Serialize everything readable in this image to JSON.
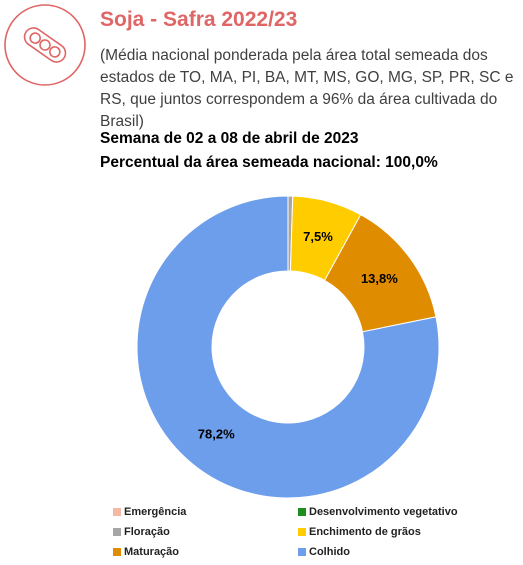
{
  "chart_data": {
    "type": "donut",
    "title": "Soja - Safra 2022/23",
    "subtitle": "(Média nacional ponderada pela área total semeada dos estados de TO, MA, PI, BA, MT, MS, GO, MG, SP, PR, SC e RS, que juntos correspondem a 96% da área cultivada do Brasil)",
    "week": "Semana de 02 a 08 de abril de 2023",
    "area_note": "Percentual da área semeada nacional: 100,0%",
    "categories": [
      "Emergência",
      "Desenvolvimento vegetativo",
      "Floração",
      "Enchimento de grãos",
      "Maturação",
      "Colhido"
    ],
    "values": [
      0,
      0,
      0.5,
      7.5,
      13.8,
      78.2
    ],
    "value_labels": [
      null,
      null,
      null,
      "7,5%",
      "13,8%",
      "78,2%"
    ],
    "colors": [
      "#f4b9a4",
      "#1e8c1e",
      "#a6a6a6",
      "#ffcc00",
      "#e08c00",
      "#6d9eeb"
    ]
  }
}
